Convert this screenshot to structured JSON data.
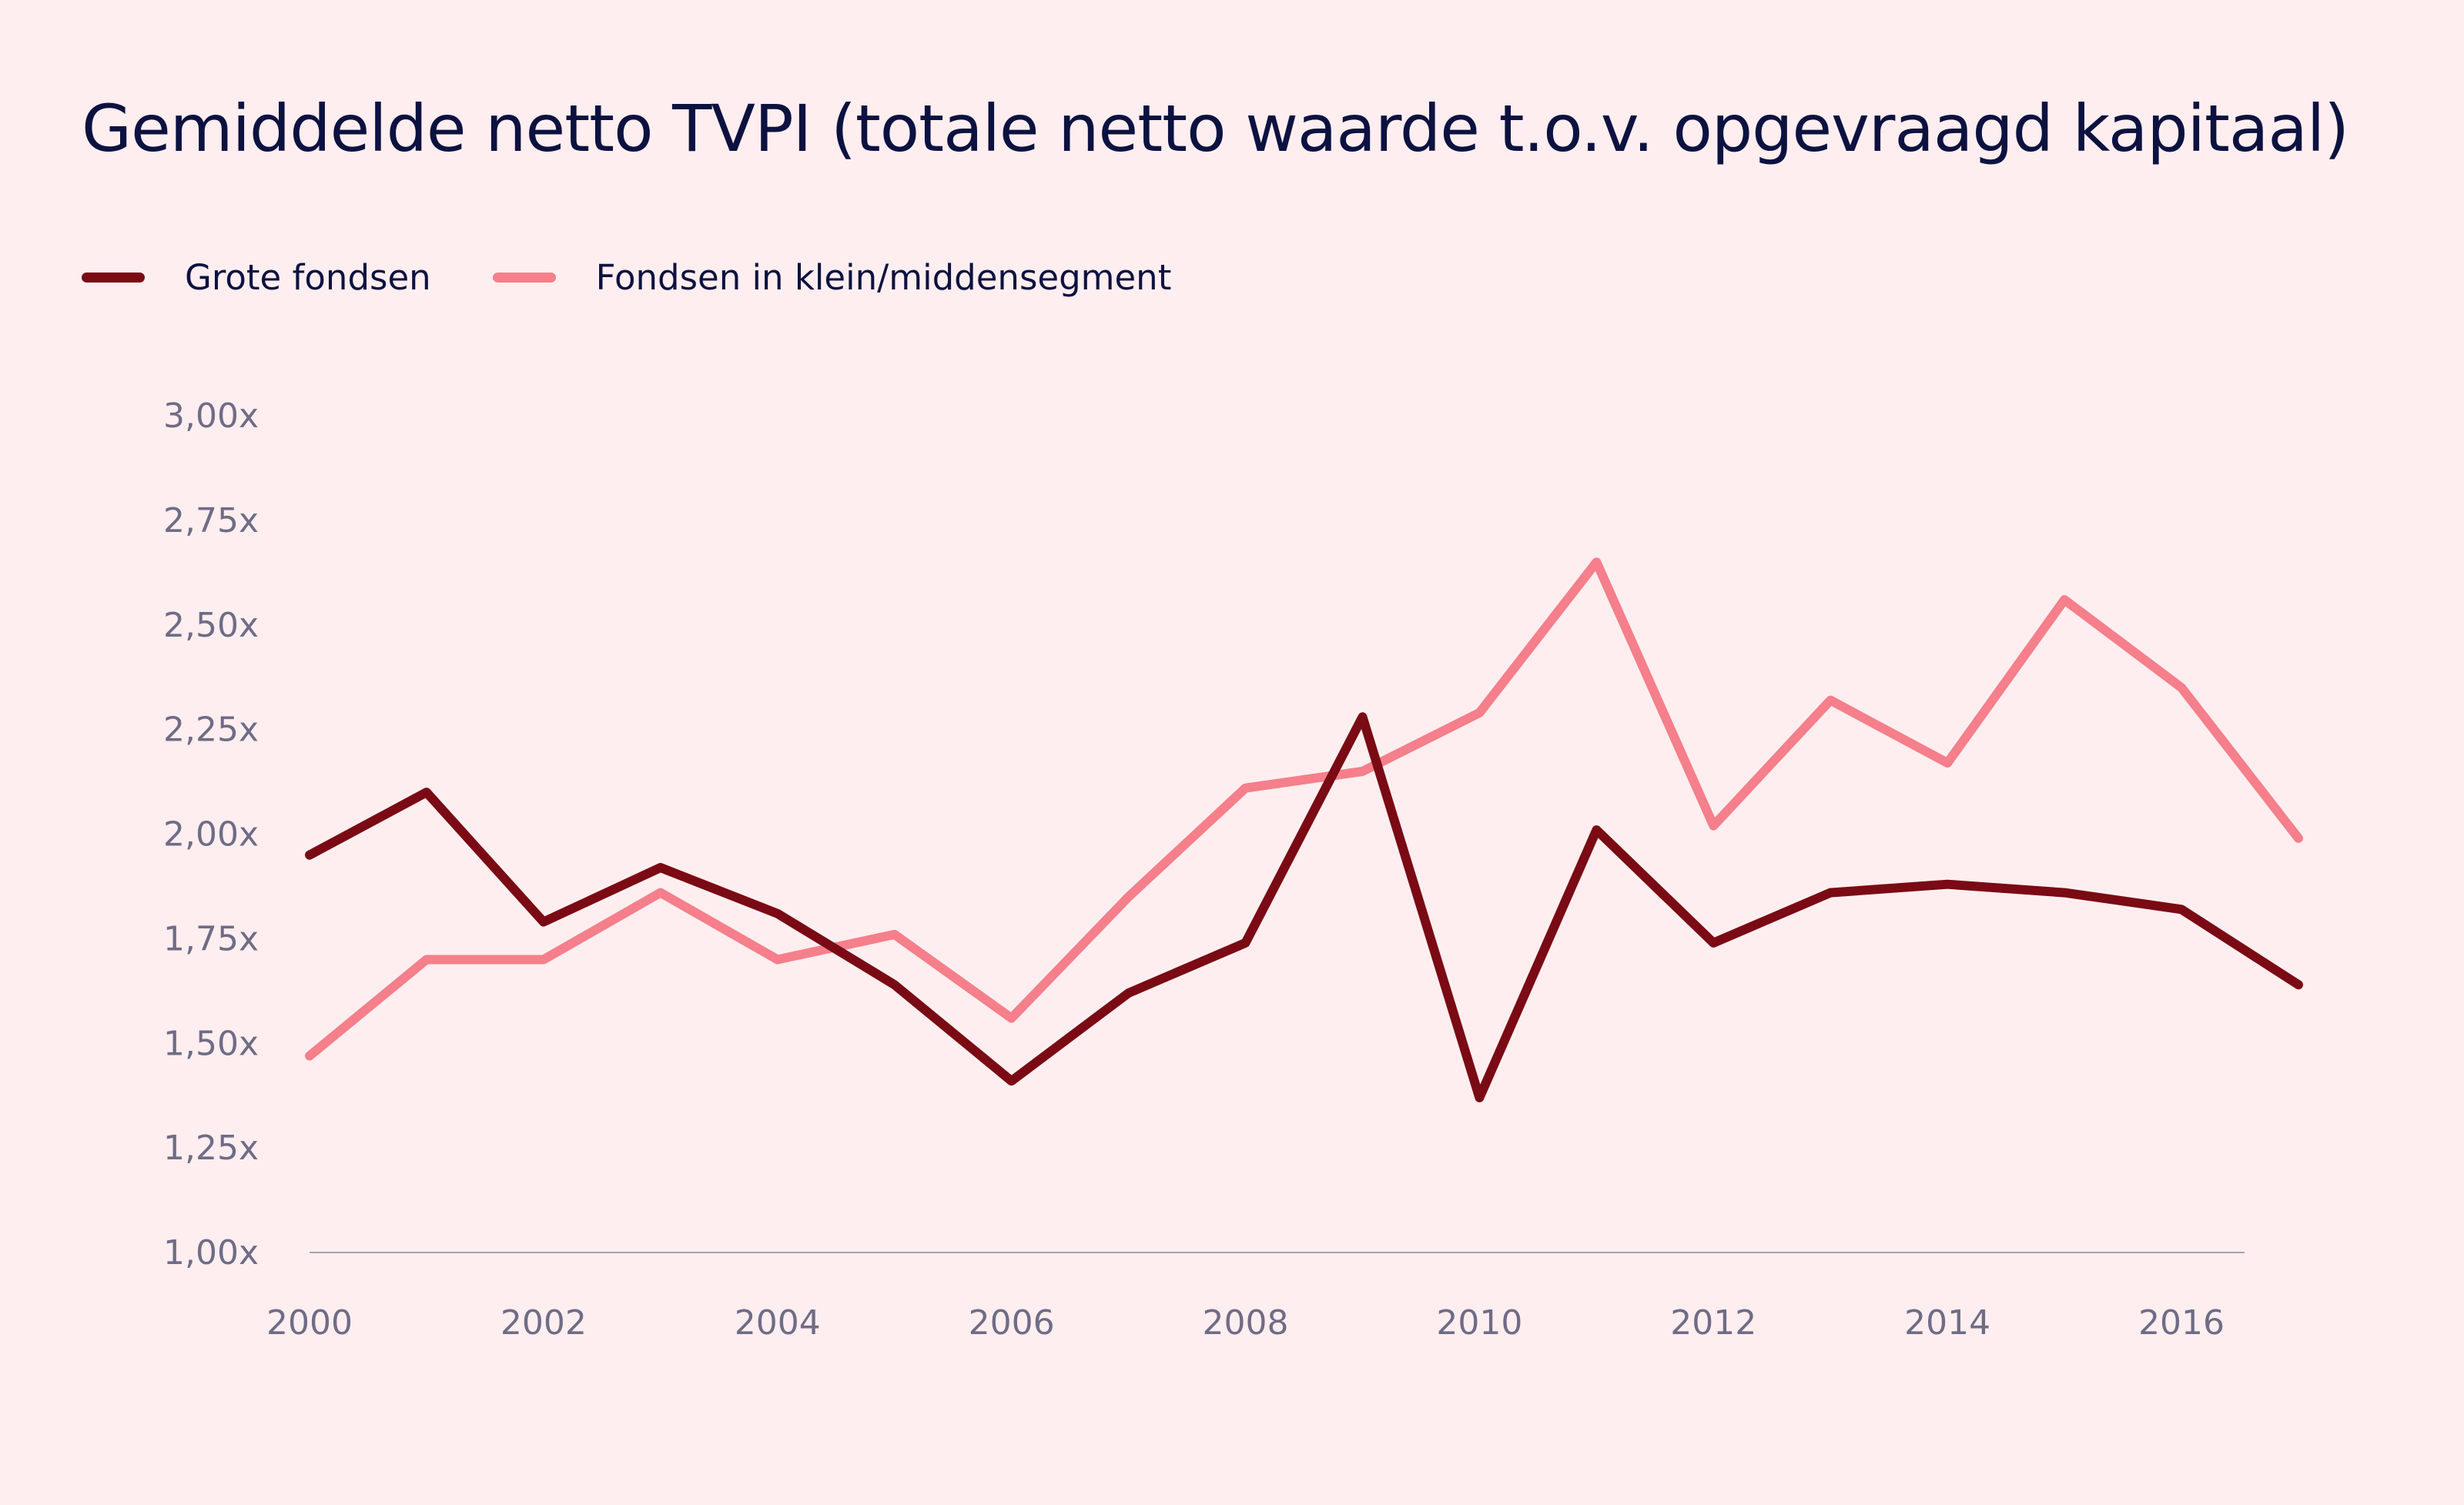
{
  "chart_data": {
    "type": "line",
    "title": "Gemiddelde netto TVPI (totale netto waarde t.o.v. opgevraagd kapitaal)",
    "xlabel": "",
    "ylabel": "",
    "x": [
      2000,
      2001,
      2002,
      2003,
      2004,
      2005,
      2006,
      2007,
      2008,
      2009,
      2010,
      2011,
      2012,
      2013,
      2014,
      2015,
      2016,
      2017
    ],
    "x_tick_labels": [
      "2000",
      "2002",
      "2004",
      "2006",
      "2008",
      "2010",
      "2012",
      "2014",
      "2016"
    ],
    "y_tick_labels": [
      "1,00x",
      "1,25x",
      "1,50x",
      "1,75x",
      "2,00x",
      "2,25x",
      "2,50x",
      "2,75x",
      "3,00x"
    ],
    "ylim": [
      1.0,
      3.0
    ],
    "grid": false,
    "legend_position": "top-left",
    "series": [
      {
        "name": "Grote fondsen",
        "color": "#7a0a14",
        "values": [
          1.95,
          2.1,
          1.79,
          1.92,
          1.81,
          1.64,
          1.41,
          1.62,
          1.74,
          2.28,
          1.37,
          2.01,
          1.74,
          1.86,
          1.88,
          1.86,
          1.82,
          1.64
        ]
      },
      {
        "name": "Fondsen in klein/middensegment",
        "color": "#f57f8b",
        "values": [
          1.47,
          1.7,
          1.7,
          1.86,
          1.7,
          1.76,
          1.56,
          1.85,
          2.11,
          2.15,
          2.29,
          2.65,
          2.02,
          2.32,
          2.17,
          2.56,
          2.35,
          1.99
        ]
      }
    ]
  },
  "colors": {
    "background": "#ffeef0",
    "title_text": "#0c1240",
    "axis_text": "#6f6c86",
    "baseline": "#a6a1b0"
  }
}
